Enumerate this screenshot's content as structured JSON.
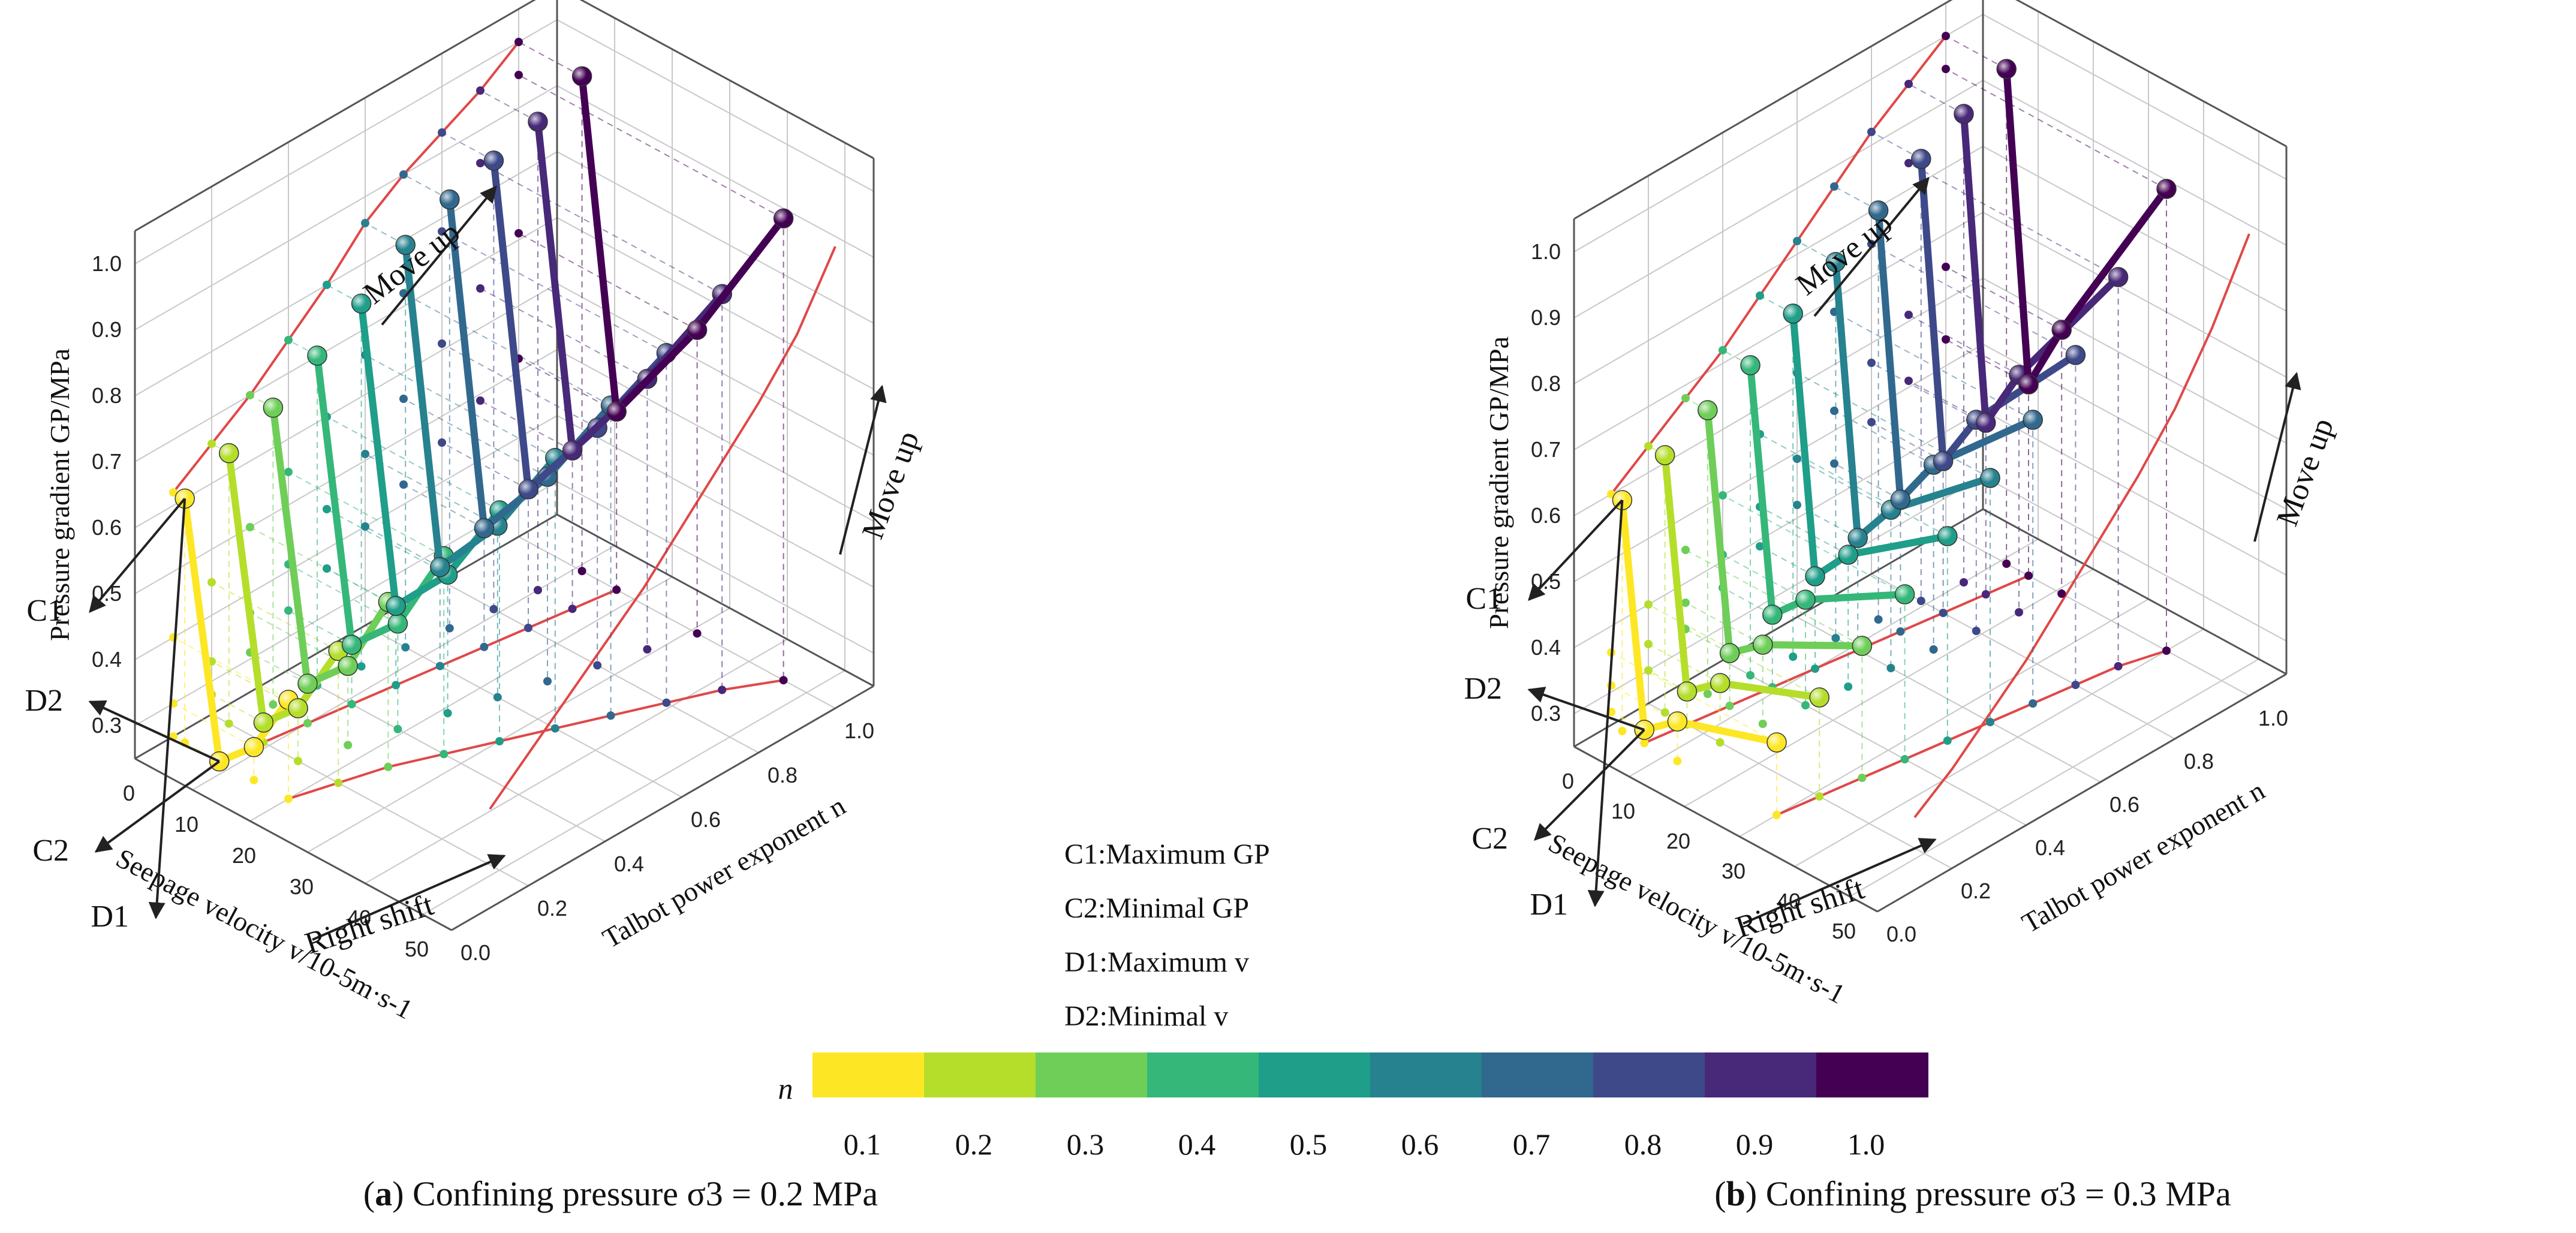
{
  "chart_data": [
    {
      "type": "3d-line",
      "id": "a",
      "caption_letter": "a",
      "caption_text": "Confining pressure σ3 = 0.2 MPa",
      "xlabel": "Seepage velocity v/10-5m·s-1",
      "ylabel": "Talbot power exponent n",
      "zlabel": "Pressure gradient GP/MPa",
      "x_ticks": [
        "0",
        "10",
        "20",
        "30",
        "40",
        "50"
      ],
      "y_ticks": [
        "0.0",
        "0.2",
        "0.4",
        "0.6",
        "0.8",
        "1.0"
      ],
      "z_ticks": [
        "1.0",
        "0.9",
        "0.8",
        "0.7",
        "0.6",
        "0.5",
        "0.4",
        "0.3"
      ],
      "xlim": [
        0,
        55
      ],
      "ylim": [
        0,
        1.1
      ],
      "zlim": [
        0.25,
        1.05
      ],
      "series": [
        {
          "name": "0.1",
          "n": 0.1,
          "color": "#fde725",
          "points": [
            [
              2,
              0.62
            ],
            [
              8,
              0.25
            ],
            [
              14,
              0.3
            ],
            [
              20,
              0.4
            ]
          ]
        },
        {
          "name": "0.2",
          "n": 0.2,
          "color": "#b5de2b",
          "points": [
            [
              3,
              0.66
            ],
            [
              9,
              0.28
            ],
            [
              15,
              0.33
            ],
            [
              22,
              0.45
            ]
          ]
        },
        {
          "name": "0.3",
          "n": 0.3,
          "color": "#6ece58",
          "points": [
            [
              4,
              0.7
            ],
            [
              10,
              0.31
            ],
            [
              17,
              0.37
            ],
            [
              24,
              0.5
            ]
          ]
        },
        {
          "name": "0.4",
          "n": 0.4,
          "color": "#35b779",
          "points": [
            [
              5,
              0.75
            ],
            [
              11,
              0.34
            ],
            [
              19,
              0.41
            ],
            [
              27,
              0.55
            ]
          ]
        },
        {
          "name": "0.5",
          "n": 0.5,
          "color": "#1f9e89",
          "points": [
            [
              6,
              0.8
            ],
            [
              12,
              0.37
            ],
            [
              21,
              0.46
            ],
            [
              30,
              0.6
            ]
          ]
        },
        {
          "name": "0.6",
          "n": 0.6,
          "color": "#26828e",
          "points": [
            [
              7,
              0.86
            ],
            [
              13,
              0.4
            ],
            [
              23,
              0.51
            ],
            [
              33,
              0.66
            ]
          ]
        },
        {
          "name": "0.7",
          "n": 0.7,
          "color": "#31688e",
          "points": [
            [
              8,
              0.9
            ],
            [
              14,
              0.43
            ],
            [
              25,
              0.56
            ],
            [
              36,
              0.72
            ]
          ]
        },
        {
          "name": "0.8",
          "n": 0.8,
          "color": "#3e4989",
          "points": [
            [
              9,
              0.93
            ],
            [
              15,
              0.46
            ],
            [
              27,
              0.61
            ],
            [
              39,
              0.78
            ]
          ]
        },
        {
          "name": "0.9",
          "n": 0.9,
          "color": "#482878",
          "points": [
            [
              10,
              0.96
            ],
            [
              16,
              0.49
            ],
            [
              29,
              0.66
            ],
            [
              42,
              0.85
            ]
          ]
        },
        {
          "name": "1.0",
          "n": 1.0,
          "color": "#440154",
          "points": [
            [
              11,
              1.0
            ],
            [
              17,
              0.52
            ],
            [
              31,
              0.71
            ],
            [
              46,
              0.95
            ]
          ]
        }
      ],
      "annotations": [
        "Move up",
        "Move up",
        "Right shift",
        "C1",
        "C2",
        "D1",
        "D2"
      ],
      "legend": [
        "C1:Maximum GP",
        "C2:Minimal GP",
        "D1:Maximum v",
        "D2:Minimal v"
      ]
    },
    {
      "type": "3d-line",
      "id": "b",
      "caption_letter": "b",
      "caption_text": "Confining pressure σ3 = 0.3 MPa",
      "xlabel": "Seepage velocity v/10-5m·s-1",
      "ylabel": "Talbot power exponent n",
      "zlabel": "Pressure gradient GP/MPa",
      "x_ticks": [
        "0",
        "10",
        "20",
        "30",
        "40",
        "50"
      ],
      "y_ticks": [
        "0.0",
        "0.2",
        "0.4",
        "0.6",
        "0.8",
        "1.0"
      ],
      "z_ticks": [
        "1.0",
        "0.9",
        "0.8",
        "0.7",
        "0.6",
        "0.5",
        "0.4",
        "0.3"
      ],
      "xlim": [
        0,
        55
      ],
      "ylim": [
        0,
        1.1
      ],
      "zlim": [
        0.25,
        1.05
      ],
      "series": [
        {
          "name": "0.1",
          "n": 0.1,
          "color": "#fde725",
          "points": [
            [
              2,
              0.6
            ],
            [
              6,
              0.27
            ],
            [
              12,
              0.31
            ],
            [
              30,
              0.36
            ]
          ]
        },
        {
          "name": "0.2",
          "n": 0.2,
          "color": "#b5de2b",
          "points": [
            [
              3,
              0.64
            ],
            [
              7,
              0.3
            ],
            [
              13,
              0.34
            ],
            [
              31,
              0.4
            ]
          ]
        },
        {
          "name": "0.3",
          "n": 0.3,
          "color": "#6ece58",
          "points": [
            [
              4,
              0.68
            ],
            [
              8,
              0.33
            ],
            [
              14,
              0.37
            ],
            [
              32,
              0.45
            ]
          ]
        },
        {
          "name": "0.4",
          "n": 0.4,
          "color": "#35b779",
          "points": [
            [
              5,
              0.72
            ],
            [
              9,
              0.36
            ],
            [
              15,
              0.41
            ],
            [
              33,
              0.5
            ]
          ]
        },
        {
          "name": "0.5",
          "n": 0.5,
          "color": "#1f9e89",
          "points": [
            [
              6,
              0.77
            ],
            [
              10,
              0.39
            ],
            [
              16,
              0.45
            ],
            [
              34,
              0.56
            ]
          ]
        },
        {
          "name": "0.6",
          "n": 0.6,
          "color": "#26828e",
          "points": [
            [
              7,
              0.82
            ],
            [
              11,
              0.42
            ],
            [
              17,
              0.49
            ],
            [
              35,
              0.62
            ]
          ]
        },
        {
          "name": "0.7",
          "n": 0.7,
          "color": "#31688e",
          "points": [
            [
              8,
              0.87
            ],
            [
              12,
              0.45
            ],
            [
              18,
              0.53
            ],
            [
              36,
              0.68
            ]
          ]
        },
        {
          "name": "0.8",
          "n": 0.8,
          "color": "#3e4989",
          "points": [
            [
              9,
              0.92
            ],
            [
              13,
              0.48
            ],
            [
              19,
              0.57
            ],
            [
              37,
              0.75
            ]
          ]
        },
        {
          "name": "0.9",
          "n": 0.9,
          "color": "#482878",
          "points": [
            [
              10,
              0.96
            ],
            [
              14,
              0.51
            ],
            [
              20,
              0.61
            ],
            [
              38,
              0.84
            ]
          ]
        },
        {
          "name": "1.0",
          "n": 1.0,
          "color": "#440154",
          "points": [
            [
              11,
              1.0
            ],
            [
              15,
              0.54
            ],
            [
              21,
              0.65
            ],
            [
              40,
              0.95
            ]
          ]
        }
      ],
      "annotations": [
        "Move up",
        "Move up",
        "Right shift",
        "C1",
        "C2",
        "D1",
        "D2"
      ]
    }
  ],
  "colorbar": {
    "symbol": "n",
    "labels": [
      "0.1",
      "0.2",
      "0.3",
      "0.4",
      "0.5",
      "0.6",
      "0.7",
      "0.8",
      "0.9",
      "1.0"
    ],
    "colors": [
      "#fde725",
      "#b5de2b",
      "#6ece58",
      "#35b779",
      "#1f9e89",
      "#26828e",
      "#31688e",
      "#3e4989",
      "#482878",
      "#440154"
    ]
  }
}
